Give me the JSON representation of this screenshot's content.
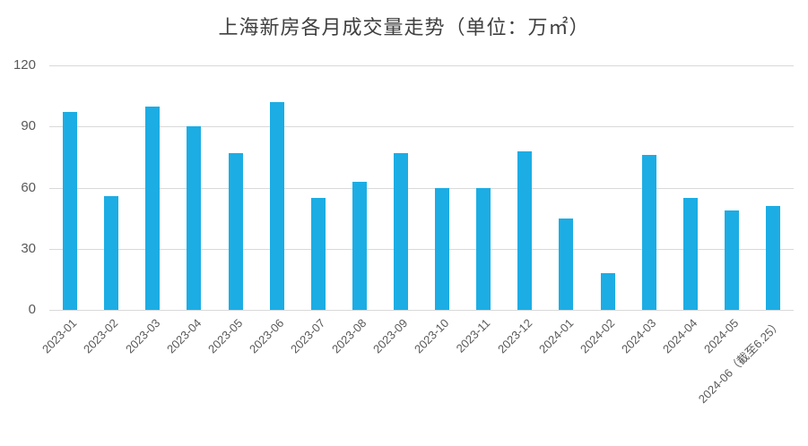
{
  "chart_data": {
    "type": "bar",
    "title": "上海新房各月成交量走势（单位：万㎡）",
    "categories": [
      "2023-01",
      "2023-02",
      "2023-03",
      "2023-04",
      "2023-05",
      "2023-06",
      "2023-07",
      "2023-08",
      "2023-09",
      "2023-10",
      "2023-11",
      "2023-12",
      "2024-01",
      "2024-02",
      "2024-03",
      "2024-04",
      "2024-05",
      "2024-06（截至6.25）"
    ],
    "values": [
      97,
      56,
      100,
      90,
      77,
      102,
      55,
      63,
      77,
      60,
      60,
      78,
      45,
      18,
      76,
      55,
      49,
      51
    ],
    "xlabel": "",
    "ylabel": "",
    "ylim": [
      0,
      120
    ],
    "yticks": [
      120,
      90,
      60,
      30,
      0
    ],
    "grid": true,
    "legend": "none",
    "colors": {
      "bar": "#1cade4",
      "grid": "#d9d9d9",
      "title": "#404040",
      "axis_labels": "#595959",
      "background": "#ffffff"
    }
  }
}
